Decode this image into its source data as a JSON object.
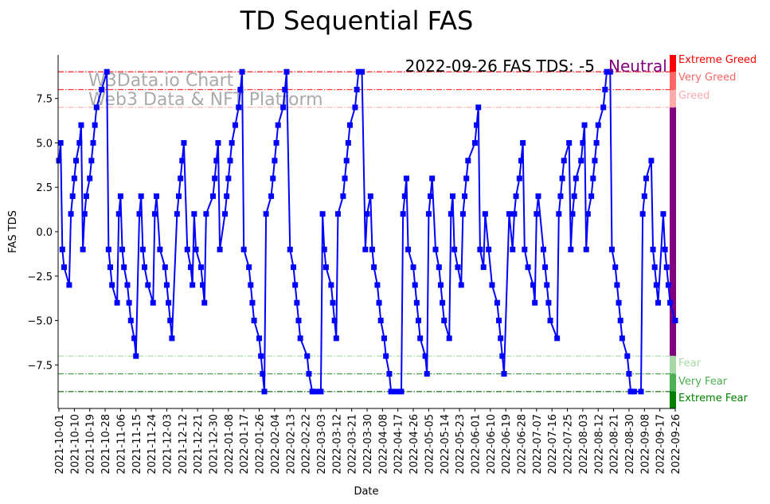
{
  "chart_data": {
    "type": "line",
    "title": "TD Sequential FAS",
    "xlabel": "Date",
    "ylabel": "FAS TDS",
    "start_date": "2021-10-01",
    "end_date": "2022-09-26",
    "ylim": [
      -9.95,
      9.95
    ],
    "yticks": [
      -7.5,
      -5.0,
      -2.5,
      0.0,
      2.5,
      5.0,
      7.5
    ],
    "ytick_labels": [
      "−7.5",
      "−5.0",
      "−2.5",
      "0.0",
      "2.5",
      "5.0",
      "7.5"
    ],
    "xtick_labels": [
      "2021-10-01",
      "2021-10-10",
      "2021-10-19",
      "2021-10-28",
      "2021-11-06",
      "2021-11-15",
      "2021-11-24",
      "2021-12-03",
      "2021-12-12",
      "2021-12-21",
      "2021-12-30",
      "2022-01-08",
      "2022-01-17",
      "2022-01-26",
      "2022-02-04",
      "2022-02-13",
      "2022-02-22",
      "2022-03-03",
      "2022-03-12",
      "2022-03-21",
      "2022-03-30",
      "2022-04-08",
      "2022-04-17",
      "2022-04-26",
      "2022-05-05",
      "2022-05-14",
      "2022-05-23",
      "2022-06-01",
      "2022-06-10",
      "2022-06-19",
      "2022-06-28",
      "2022-07-07",
      "2022-07-16",
      "2022-07-25",
      "2022-08-03",
      "2022-08-12",
      "2022-08-21",
      "2022-08-30",
      "2022-09-08",
      "2022-09-17",
      "2022-09-26"
    ],
    "xtick_step_days": 9,
    "series": [
      {
        "name": "FAS TDS",
        "color": "#0000ff",
        "marker": "square",
        "points_day_value": [
          [
            0,
            4
          ],
          [
            1,
            5
          ],
          [
            2,
            -1
          ],
          [
            3,
            -2
          ],
          [
            6,
            -3
          ],
          [
            7,
            1
          ],
          [
            8,
            2
          ],
          [
            9,
            3
          ],
          [
            10,
            4
          ],
          [
            12,
            5
          ],
          [
            13,
            6
          ],
          [
            14,
            -1
          ],
          [
            15,
            1
          ],
          [
            16,
            2
          ],
          [
            18,
            3
          ],
          [
            19,
            4
          ],
          [
            20,
            5
          ],
          [
            21,
            6
          ],
          [
            22,
            7
          ],
          [
            25,
            8
          ],
          [
            28,
            9
          ],
          [
            29,
            -1
          ],
          [
            30,
            -2
          ],
          [
            31,
            -3
          ],
          [
            34,
            -4
          ],
          [
            35,
            1
          ],
          [
            36,
            2
          ],
          [
            37,
            -1
          ],
          [
            38,
            -2
          ],
          [
            40,
            -3
          ],
          [
            41,
            -4
          ],
          [
            42,
            -5
          ],
          [
            44,
            -6
          ],
          [
            45,
            -7
          ],
          [
            47,
            1
          ],
          [
            48,
            2
          ],
          [
            49,
            -1
          ],
          [
            50,
            -2
          ],
          [
            52,
            -3
          ],
          [
            55,
            -4
          ],
          [
            56,
            1
          ],
          [
            57,
            2
          ],
          [
            59,
            -1
          ],
          [
            62,
            -2
          ],
          [
            63,
            -3
          ],
          [
            64,
            -4
          ],
          [
            65,
            -5
          ],
          [
            66,
            -6
          ],
          [
            69,
            1
          ],
          [
            70,
            2
          ],
          [
            71,
            3
          ],
          [
            72,
            4
          ],
          [
            73,
            5
          ],
          [
            75,
            -1
          ],
          [
            77,
            -2
          ],
          [
            78,
            -3
          ],
          [
            79,
            1
          ],
          [
            80,
            -1
          ],
          [
            83,
            -2
          ],
          [
            84,
            -3
          ],
          [
            85,
            -4
          ],
          [
            86,
            1
          ],
          [
            90,
            2
          ],
          [
            91,
            3
          ],
          [
            92,
            4
          ],
          [
            93,
            5
          ],
          [
            94,
            -1
          ],
          [
            97,
            1
          ],
          [
            98,
            2
          ],
          [
            99,
            3
          ],
          [
            100,
            4
          ],
          [
            101,
            5
          ],
          [
            103,
            6
          ],
          [
            105,
            7
          ],
          [
            106,
            8
          ],
          [
            107,
            9
          ],
          [
            108,
            -1
          ],
          [
            111,
            -2
          ],
          [
            112,
            -3
          ],
          [
            113,
            -4
          ],
          [
            114,
            -5
          ],
          [
            117,
            -6
          ],
          [
            118,
            -7
          ],
          [
            119,
            -8
          ],
          [
            120,
            -9
          ],
          [
            121,
            1
          ],
          [
            124,
            2
          ],
          [
            125,
            3
          ],
          [
            126,
            4
          ],
          [
            127,
            5
          ],
          [
            128,
            6
          ],
          [
            131,
            7
          ],
          [
            132,
            8
          ],
          [
            133,
            9
          ],
          [
            135,
            -1
          ],
          [
            137,
            -2
          ],
          [
            138,
            -3
          ],
          [
            139,
            -4
          ],
          [
            140,
            -5
          ],
          [
            141,
            -6
          ],
          [
            145,
            -7
          ],
          [
            146,
            -8
          ],
          [
            148,
            -9
          ],
          [
            150,
            -9
          ],
          [
            153,
            -9
          ],
          [
            154,
            1
          ],
          [
            155,
            -1
          ],
          [
            156,
            -2
          ],
          [
            159,
            -3
          ],
          [
            160,
            -4
          ],
          [
            161,
            -5
          ],
          [
            162,
            -6
          ],
          [
            163,
            1
          ],
          [
            166,
            2
          ],
          [
            167,
            3
          ],
          [
            168,
            4
          ],
          [
            169,
            5
          ],
          [
            170,
            6
          ],
          [
            173,
            7
          ],
          [
            174,
            8
          ],
          [
            175,
            9
          ],
          [
            177,
            9
          ],
          [
            179,
            -1
          ],
          [
            180,
            1
          ],
          [
            182,
            2
          ],
          [
            183,
            -1
          ],
          [
            184,
            -2
          ],
          [
            186,
            -3
          ],
          [
            187,
            -4
          ],
          [
            188,
            -5
          ],
          [
            190,
            -6
          ],
          [
            191,
            -7
          ],
          [
            193,
            -8
          ],
          [
            194,
            -9
          ],
          [
            197,
            -9
          ],
          [
            200,
            -9
          ],
          [
            201,
            1
          ],
          [
            202,
            2
          ],
          [
            203,
            3
          ],
          [
            204,
            -1
          ],
          [
            207,
            -2
          ],
          [
            208,
            -3
          ],
          [
            209,
            -4
          ],
          [
            210,
            -5
          ],
          [
            211,
            -6
          ],
          [
            214,
            -7
          ],
          [
            215,
            -8
          ],
          [
            216,
            1
          ],
          [
            217,
            2
          ],
          [
            218,
            3
          ],
          [
            220,
            -1
          ],
          [
            222,
            -2
          ],
          [
            223,
            -3
          ],
          [
            224,
            -4
          ],
          [
            225,
            -5
          ],
          [
            228,
            -6
          ],
          [
            229,
            1
          ],
          [
            230,
            2
          ],
          [
            231,
            -1
          ],
          [
            233,
            -2
          ],
          [
            235,
            -3
          ],
          [
            236,
            1
          ],
          [
            237,
            2
          ],
          [
            238,
            3
          ],
          [
            239,
            4
          ],
          [
            243,
            5
          ],
          [
            244,
            6
          ],
          [
            245,
            7
          ],
          [
            246,
            -1
          ],
          [
            248,
            -2
          ],
          [
            249,
            1
          ],
          [
            251,
            -1
          ],
          [
            253,
            -3
          ],
          [
            256,
            -4
          ],
          [
            257,
            -5
          ],
          [
            258,
            -6
          ],
          [
            259,
            -7
          ],
          [
            260,
            -8
          ],
          [
            263,
            1
          ],
          [
            265,
            -1
          ],
          [
            266,
            1
          ],
          [
            267,
            2
          ],
          [
            269,
            3
          ],
          [
            270,
            4
          ],
          [
            271,
            5
          ],
          [
            272,
            -1
          ],
          [
            274,
            -2
          ],
          [
            277,
            -3
          ],
          [
            278,
            -4
          ],
          [
            279,
            1
          ],
          [
            280,
            2
          ],
          [
            283,
            -1
          ],
          [
            284,
            -2
          ],
          [
            285,
            -3
          ],
          [
            286,
            -4
          ],
          [
            287,
            -5
          ],
          [
            291,
            -6
          ],
          [
            292,
            1
          ],
          [
            293,
            2
          ],
          [
            294,
            3
          ],
          [
            295,
            4
          ],
          [
            298,
            5
          ],
          [
            299,
            -1
          ],
          [
            300,
            1
          ],
          [
            301,
            2
          ],
          [
            302,
            3
          ],
          [
            305,
            4
          ],
          [
            306,
            5
          ],
          [
            307,
            6
          ],
          [
            308,
            -1
          ],
          [
            309,
            1
          ],
          [
            311,
            2
          ],
          [
            312,
            3
          ],
          [
            313,
            4
          ],
          [
            314,
            5
          ],
          [
            315,
            6
          ],
          [
            318,
            7
          ],
          [
            319,
            8
          ],
          [
            320,
            9
          ],
          [
            322,
            9
          ],
          [
            323,
            -1
          ],
          [
            325,
            -2
          ],
          [
            326,
            -3
          ],
          [
            327,
            -4
          ],
          [
            328,
            -5
          ],
          [
            329,
            -6
          ],
          [
            332,
            -7
          ],
          [
            333,
            -8
          ],
          [
            334,
            -9
          ],
          [
            336,
            -9
          ],
          [
            340,
            -9
          ],
          [
            341,
            1
          ],
          [
            342,
            2
          ],
          [
            343,
            3
          ],
          [
            346,
            4
          ],
          [
            347,
            -1
          ],
          [
            348,
            -2
          ],
          [
            349,
            -3
          ],
          [
            350,
            -4
          ],
          [
            353,
            1
          ],
          [
            354,
            -1
          ],
          [
            355,
            -2
          ],
          [
            356,
            -3
          ],
          [
            357,
            -4
          ],
          [
            360,
            -5
          ]
        ]
      }
    ],
    "levels": [
      {
        "label": "Extreme Greed",
        "line_value": 9,
        "band": [
          9,
          9.95
        ],
        "color": "#ff0000"
      },
      {
        "label": "Very Greed",
        "line_value": 8,
        "band": [
          8,
          9
        ],
        "color": "#ff6666"
      },
      {
        "label": "Greed",
        "line_value": 7,
        "band": [
          7,
          8
        ],
        "color": "#ffaaaa"
      },
      {
        "label": "Neutral",
        "line_value": null,
        "band": [
          -7,
          7
        ],
        "color": "#800080"
      },
      {
        "label": "Fear",
        "line_value": -7,
        "band": [
          -8,
          -7
        ],
        "color": "#a6d9a6"
      },
      {
        "label": "Very Fear",
        "line_value": -8,
        "band": [
          -9,
          -8
        ],
        "color": "#4caf50"
      },
      {
        "label": "Extreme Fear",
        "line_value": -9,
        "band": [
          -9.95,
          -9
        ],
        "color": "#008000"
      }
    ],
    "annotation": {
      "text": "2022-09-26 FAS TDS: -5",
      "status": "Neutral",
      "status_color": "#800080"
    },
    "watermark": [
      "W3Data.io Chart",
      "Web3 Data & NFT Platform"
    ]
  }
}
